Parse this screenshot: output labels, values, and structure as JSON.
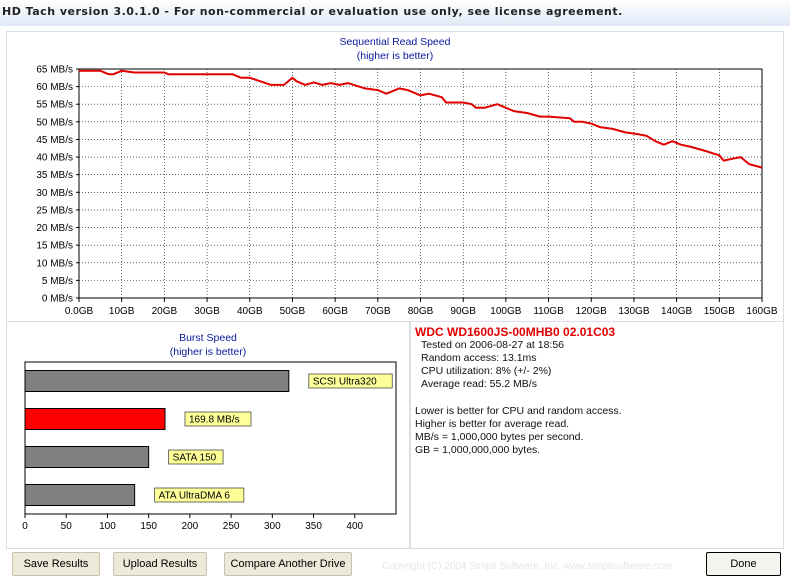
{
  "window": {
    "title": "HD Tach version 3.0.1.0  - For non-commercial or evaluation use only, see license agreement."
  },
  "chart_data": [
    {
      "type": "line",
      "title": "Sequential Read Speed",
      "subtitle": "(higher is better)",
      "xlabel": "",
      "ylabel": "",
      "ylim": [
        0,
        65
      ],
      "xlim": [
        0,
        160
      ],
      "y_ticks": [
        "0 MB/s",
        "5 MB/s",
        "10 MB/s",
        "15 MB/s",
        "20 MB/s",
        "25 MB/s",
        "30 MB/s",
        "35 MB/s",
        "40 MB/s",
        "45 MB/s",
        "50 MB/s",
        "55 MB/s",
        "60 MB/s",
        "65 MB/s"
      ],
      "x_ticks": [
        "0.0GB",
        "10GB",
        "20GB",
        "30GB",
        "40GB",
        "50GB",
        "60GB",
        "70GB",
        "80GB",
        "90GB",
        "100GB",
        "110GB",
        "120GB",
        "130GB",
        "140GB",
        "150GB",
        "160GB"
      ],
      "grid": true,
      "line_color": "#e00000",
      "series": [
        {
          "x": [
            0,
            5,
            7,
            8,
            10,
            13,
            14,
            20,
            21,
            22,
            36,
            38,
            40,
            45,
            48,
            50,
            51,
            53,
            55,
            57,
            59,
            61,
            63,
            67,
            70,
            72,
            75,
            77,
            80,
            82,
            85,
            86,
            90,
            92,
            93,
            95,
            98,
            100,
            102,
            105,
            108,
            110,
            115,
            116,
            118,
            120,
            122,
            125,
            128,
            131,
            133,
            135,
            137,
            139,
            141,
            143,
            146,
            150,
            151,
            153,
            155,
            157,
            160
          ],
          "y": [
            64.5,
            64.5,
            63.5,
            63.5,
            64.5,
            64,
            64,
            64,
            63.5,
            63.5,
            63.5,
            62.5,
            62.5,
            60.5,
            60.5,
            62.5,
            61.5,
            60.5,
            61.2,
            60.5,
            61,
            60.5,
            61,
            59.5,
            59,
            58,
            59.5,
            59,
            57.5,
            58,
            57,
            55.5,
            55.5,
            55,
            54,
            54,
            55,
            54,
            53,
            52.5,
            51.5,
            51.5,
            51,
            50,
            50,
            49.5,
            48.5,
            48,
            47,
            46.5,
            46,
            44.5,
            43.5,
            44.5,
            43.5,
            43,
            42,
            40.5,
            39,
            39.5,
            40,
            38,
            37
          ]
        }
      ]
    },
    {
      "type": "bar",
      "orientation": "horizontal",
      "title": "Burst Speed",
      "subtitle": "(higher is better)",
      "xlim": [
        0,
        450
      ],
      "x_ticks": [
        "0",
        "50",
        "100",
        "150",
        "200",
        "250",
        "300",
        "350",
        "400"
      ],
      "categories": [
        "SCSI Ultra320",
        "169.8 MB/s",
        "SATA 150",
        "ATA UltraDMA 6"
      ],
      "values": [
        320,
        169.8,
        150,
        133
      ],
      "bar_colors": [
        "#808080",
        "#ff0000",
        "#808080",
        "#808080"
      ],
      "label_color": "#ffff99"
    }
  ],
  "info": {
    "drive_name": "WDC WD1600JS-00MHB0 02.01C03",
    "lines": [
      "Tested on 2006-08-27 at 18:56",
      "Random access: 13.1ms",
      "CPU utilization: 8% (+/- 2%)",
      "Average read: 55.2 MB/s"
    ],
    "notes": [
      "Lower is better for CPU and random access.",
      "Higher is better for average read.",
      "MB/s = 1,000,000 bytes per second.",
      "GB = 1,000,000,000 bytes."
    ]
  },
  "buttons": {
    "save": "Save Results",
    "upload": "Upload Results",
    "compare": "Compare Another Drive",
    "done": "Done"
  },
  "footer": {
    "copyright": "Copyright (C) 2004 Simpli Software, Inc. www.simplisoftware.com"
  }
}
